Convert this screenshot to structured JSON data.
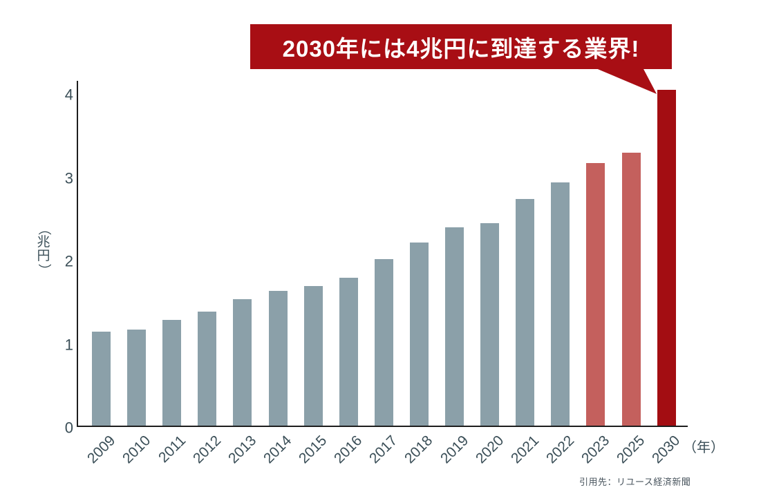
{
  "banner": {
    "text": "2030年には4兆円に到達する業界!",
    "bg_color": "#a80e14",
    "text_color": "#ffffff"
  },
  "axis": {
    "y_unit_label": "（兆円）",
    "x_unit_label": "（年）",
    "y_ticks": [
      "0",
      "1",
      "2",
      "3",
      "4"
    ]
  },
  "source": {
    "text": "引用先：リユース経済新聞"
  },
  "chart_data": {
    "type": "bar",
    "title": "2030年には4兆円に到達する業界!",
    "xlabel": "（年）",
    "ylabel": "（兆円）",
    "ylim": [
      0,
      4
    ],
    "grid": false,
    "legend": "none",
    "categories": [
      "2009",
      "2010",
      "2011",
      "2012",
      "2013",
      "2014",
      "2015",
      "2016",
      "2017",
      "2018",
      "2019",
      "2020",
      "2021",
      "2022",
      "2023",
      "2025",
      "2030"
    ],
    "values": [
      1.13,
      1.15,
      1.27,
      1.37,
      1.52,
      1.62,
      1.68,
      1.78,
      2.0,
      2.2,
      2.38,
      2.43,
      2.72,
      2.92,
      3.15,
      3.28,
      4.03
    ],
    "bar_types": [
      "actual",
      "actual",
      "actual",
      "actual",
      "actual",
      "actual",
      "actual",
      "actual",
      "actual",
      "actual",
      "actual",
      "actual",
      "actual",
      "actual",
      "forecast",
      "forecast",
      "final"
    ],
    "colors": {
      "actual": "#8ba0a9",
      "forecast": "#c4605d",
      "final": "#a30d12"
    }
  }
}
